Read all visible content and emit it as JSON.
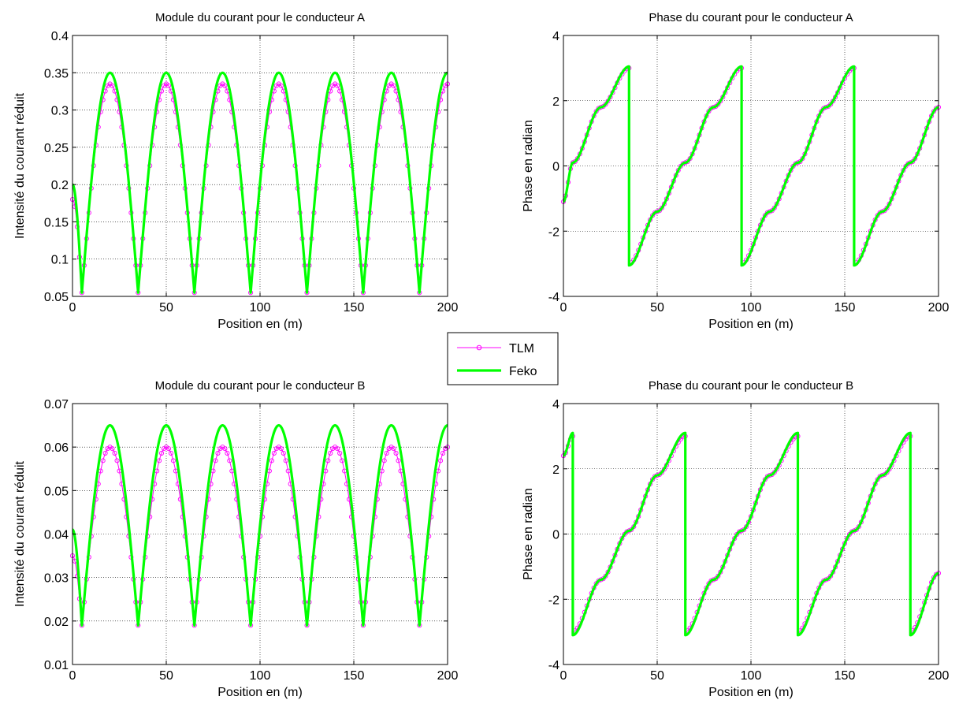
{
  "chart_data": [
    {
      "id": "moduleA",
      "type": "line",
      "title": "Module du courant pour le conducteur A",
      "xlabel": "Position en (m)",
      "ylabel": "Intensité du courant réduit",
      "xlim": [
        0,
        200
      ],
      "ylim": [
        0.05,
        0.4
      ],
      "xticks": [
        0,
        50,
        100,
        150,
        200
      ],
      "yticks": [
        0.05,
        0.1,
        0.15,
        0.2,
        0.25,
        0.3,
        0.35,
        0.4
      ],
      "xtick_labels": [
        "0",
        "50",
        "100",
        "150",
        "200"
      ],
      "ytick_labels": [
        "0.05",
        "0.1",
        "0.15",
        "0.2",
        "0.25",
        "0.3",
        "0.35",
        "0.4"
      ],
      "grid": true,
      "series": [
        {
          "name": "TLM",
          "color": "#ff00ff",
          "marker": "circle",
          "x": [
            0,
            5,
            20,
            35,
            50,
            65,
            80,
            95,
            110,
            125,
            140,
            155,
            170,
            185,
            200
          ],
          "y": [
            0.18,
            0.055,
            0.335,
            0.055,
            0.335,
            0.055,
            0.335,
            0.055,
            0.335,
            0.055,
            0.335,
            0.055,
            0.335,
            0.055,
            0.335
          ]
        },
        {
          "name": "Feko",
          "color": "#00ff00",
          "marker": "none",
          "x": [
            0,
            5,
            20,
            35,
            50,
            65,
            80,
            95,
            110,
            125,
            140,
            155,
            170,
            185,
            200
          ],
          "y": [
            0.2,
            0.055,
            0.35,
            0.055,
            0.35,
            0.055,
            0.35,
            0.055,
            0.35,
            0.055,
            0.35,
            0.055,
            0.35,
            0.055,
            0.35
          ]
        }
      ]
    },
    {
      "id": "phaseA",
      "type": "line",
      "title": "Phase du courant pour le conducteur A",
      "xlabel": "Position en (m)",
      "ylabel": "Phase en radian",
      "xlim": [
        0,
        200
      ],
      "ylim": [
        -4,
        4
      ],
      "xticks": [
        0,
        50,
        100,
        150,
        200
      ],
      "yticks": [
        -4,
        -2,
        0,
        2,
        4
      ],
      "xtick_labels": [
        "0",
        "50",
        "100",
        "150",
        "200"
      ],
      "ytick_labels": [
        "-4",
        "-2",
        "0",
        "2",
        "4"
      ],
      "grid": true,
      "series": [
        {
          "name": "TLM",
          "color": "#ff00ff",
          "marker": "circle",
          "x": [
            0,
            5,
            20,
            35,
            35,
            50,
            65,
            80,
            95,
            95,
            110,
            125,
            140,
            155,
            155,
            170,
            185,
            200
          ],
          "y": [
            -1.1,
            0.1,
            1.8,
            3.0,
            -3.0,
            -1.4,
            0.1,
            1.8,
            3.0,
            -3.0,
            -1.4,
            0.1,
            1.8,
            3.0,
            -3.0,
            -1.4,
            0.1,
            1.8
          ]
        },
        {
          "name": "Feko",
          "color": "#00ff00",
          "marker": "none",
          "x": [
            0,
            5,
            20,
            35,
            35,
            50,
            65,
            80,
            95,
            95,
            110,
            125,
            140,
            155,
            155,
            170,
            185,
            200
          ],
          "y": [
            -1.1,
            0.1,
            1.8,
            3.05,
            -3.05,
            -1.4,
            0.1,
            1.8,
            3.05,
            -3.05,
            -1.4,
            0.1,
            1.8,
            3.05,
            -3.05,
            -1.4,
            0.1,
            1.8
          ]
        }
      ]
    },
    {
      "id": "moduleB",
      "type": "line",
      "title": "Module du courant pour le conducteur B",
      "xlabel": "Position en (m)",
      "ylabel": "Intensité du courant réduit",
      "xlim": [
        0,
        200
      ],
      "ylim": [
        0.01,
        0.07
      ],
      "xticks": [
        0,
        50,
        100,
        150,
        200
      ],
      "yticks": [
        0.01,
        0.02,
        0.03,
        0.04,
        0.05,
        0.06,
        0.07
      ],
      "xtick_labels": [
        "0",
        "50",
        "100",
        "150",
        "200"
      ],
      "ytick_labels": [
        "0.01",
        "0.02",
        "0.03",
        "0.04",
        "0.05",
        "0.06",
        "0.07"
      ],
      "grid": true,
      "series": [
        {
          "name": "TLM",
          "color": "#ff00ff",
          "marker": "circle",
          "x": [
            0,
            5,
            20,
            35,
            50,
            65,
            80,
            95,
            110,
            125,
            140,
            155,
            170,
            185,
            200
          ],
          "y": [
            0.035,
            0.019,
            0.06,
            0.019,
            0.06,
            0.019,
            0.06,
            0.019,
            0.06,
            0.019,
            0.06,
            0.019,
            0.06,
            0.019,
            0.06
          ]
        },
        {
          "name": "Feko",
          "color": "#00ff00",
          "marker": "none",
          "x": [
            0,
            5,
            20,
            35,
            50,
            65,
            80,
            95,
            110,
            125,
            140,
            155,
            170,
            185,
            200
          ],
          "y": [
            0.041,
            0.019,
            0.065,
            0.019,
            0.065,
            0.019,
            0.065,
            0.019,
            0.065,
            0.019,
            0.065,
            0.019,
            0.065,
            0.019,
            0.065
          ]
        }
      ]
    },
    {
      "id": "phaseB",
      "type": "line",
      "title": "Phase du courant pour le conducteur B",
      "xlabel": "Position en (m)",
      "ylabel": "Phase en radian",
      "xlim": [
        0,
        200
      ],
      "ylim": [
        -4,
        4
      ],
      "xticks": [
        0,
        50,
        100,
        150,
        200
      ],
      "yticks": [
        -4,
        -2,
        0,
        2,
        4
      ],
      "xtick_labels": [
        "0",
        "50",
        "100",
        "150",
        "200"
      ],
      "ytick_labels": [
        "-4",
        "-2",
        "0",
        "2",
        "4"
      ],
      "grid": true,
      "series": [
        {
          "name": "TLM",
          "color": "#ff00ff",
          "marker": "circle",
          "x": [
            0,
            5,
            5,
            20,
            35,
            50,
            65,
            65,
            80,
            95,
            110,
            125,
            125,
            140,
            155,
            170,
            185,
            185,
            200
          ],
          "y": [
            2.4,
            3.0,
            -3.0,
            -1.4,
            0.1,
            1.8,
            3.0,
            -3.0,
            -1.4,
            0.1,
            1.8,
            3.0,
            -3.0,
            -1.4,
            0.1,
            1.8,
            3.0,
            -3.0,
            -1.2
          ]
        },
        {
          "name": "Feko",
          "color": "#00ff00",
          "marker": "none",
          "x": [
            0,
            5,
            5,
            20,
            35,
            50,
            65,
            65,
            80,
            95,
            110,
            125,
            125,
            140,
            155,
            170,
            185,
            185,
            200
          ],
          "y": [
            2.4,
            3.1,
            -3.1,
            -1.4,
            0.1,
            1.8,
            3.1,
            -3.1,
            -1.4,
            0.1,
            1.8,
            3.1,
            -3.1,
            -1.4,
            0.1,
            1.8,
            3.1,
            -3.1,
            -1.2
          ]
        }
      ]
    }
  ],
  "legend": {
    "entries": [
      {
        "label": "TLM",
        "color": "#ff00ff",
        "marker": "circle"
      },
      {
        "label": "Feko",
        "color": "#00ff00",
        "marker": "none"
      }
    ],
    "placement": "center"
  }
}
